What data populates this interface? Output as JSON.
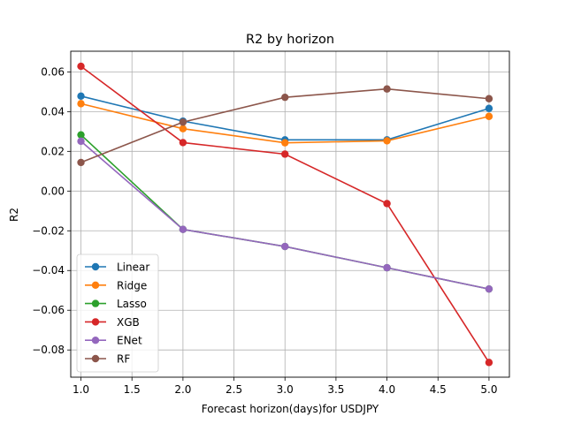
{
  "chart_data": {
    "type": "line",
    "title": "R2 by horizon",
    "xlabel": "Forecast horizon(days)for USDJPY",
    "ylabel": "R2",
    "x": [
      1.0,
      2.0,
      3.0,
      4.0,
      5.0
    ],
    "xlim": [
      0.9,
      5.2
    ],
    "ylim": [
      -0.0937,
      0.0704
    ],
    "xticks": [
      1.0,
      1.5,
      2.0,
      2.5,
      3.0,
      3.5,
      4.0,
      4.5,
      5.0
    ],
    "xtick_labels": [
      "1.0",
      "1.5",
      "2.0",
      "2.5",
      "3.0",
      "3.5",
      "4.0",
      "4.5",
      "5.0"
    ],
    "yticks": [
      -0.08,
      -0.06,
      -0.04,
      -0.02,
      0.0,
      0.02,
      0.04,
      0.06
    ],
    "ytick_labels": [
      "−0.08",
      "−0.06",
      "−0.04",
      "−0.02",
      "0.00",
      "0.02",
      "0.04",
      "0.06"
    ],
    "grid": true,
    "legend_position": "lower-left",
    "series": [
      {
        "name": "Linear",
        "color": "#1f77b4",
        "values": [
          0.0478,
          0.0352,
          0.0258,
          0.0258,
          0.0416
        ]
      },
      {
        "name": "Ridge",
        "color": "#ff7f0e",
        "values": [
          0.044,
          0.0314,
          0.0243,
          0.0253,
          0.0376
        ]
      },
      {
        "name": "Lasso",
        "color": "#2ca02c",
        "values": [
          0.0283,
          -0.0193,
          -0.0279,
          -0.0386,
          -0.0493
        ]
      },
      {
        "name": "XGB",
        "color": "#d62728",
        "values": [
          0.0628,
          0.0244,
          0.0186,
          -0.0063,
          -0.0863
        ]
      },
      {
        "name": "ENet",
        "color": "#9467bd",
        "values": [
          0.0251,
          -0.0193,
          -0.0279,
          -0.0386,
          -0.0493
        ]
      },
      {
        "name": "RF",
        "color": "#8c564b",
        "values": [
          0.0144,
          0.0347,
          0.0472,
          0.0514,
          0.0465
        ]
      }
    ]
  }
}
